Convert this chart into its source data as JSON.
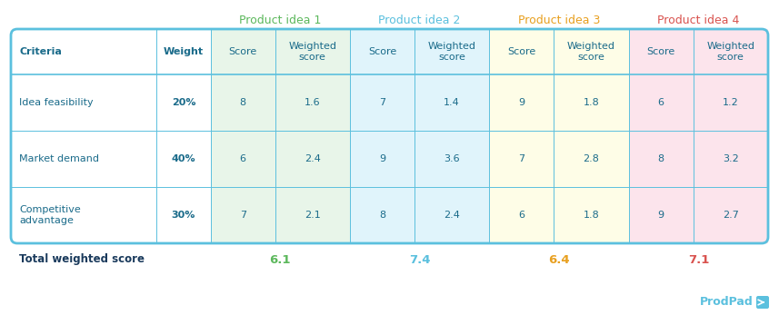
{
  "title_above": [
    "Product idea 1",
    "Product idea 2",
    "Product idea 3",
    "Product idea 4"
  ],
  "title_colors": [
    "#5cb85c",
    "#5bc0de",
    "#e8a020",
    "#d9534f"
  ],
  "header_row": [
    "Criteria",
    "Weight",
    "Score",
    "Weighted\nscore",
    "Score",
    "Weighted\nscore",
    "Score",
    "Weighted\nscore",
    "Score",
    "Weighted\nscore"
  ],
  "rows": [
    [
      "Idea feasibility",
      "20%",
      "8",
      "1.6",
      "7",
      "1.4",
      "9",
      "1.8",
      "6",
      "1.2"
    ],
    [
      "Market demand",
      "40%",
      "6",
      "2.4",
      "9",
      "3.6",
      "7",
      "2.8",
      "8",
      "3.2"
    ],
    [
      "Competitive\nadvantage",
      "30%",
      "7",
      "2.1",
      "8",
      "2.4",
      "6",
      "1.8",
      "9",
      "2.7"
    ]
  ],
  "total_label": "Total weighted score",
  "total_vals": [
    "6.1",
    "7.4",
    "6.4",
    "7.1"
  ],
  "total_val_col_indices": [
    3,
    5,
    7,
    9
  ],
  "col_bg_colors": [
    "#ffffff",
    "#ffffff",
    "#e8f5e9",
    "#e8f5e9",
    "#e0f4fb",
    "#e0f4fb",
    "#fefde7",
    "#fefde7",
    "#fce4ec",
    "#fce4ec"
  ],
  "header_text_color": "#1a6b8a",
  "body_text_color": "#1a6b8a",
  "border_color": "#5bc0de",
  "background_color": "#ffffff",
  "prodpad_text": "ProdPad",
  "prodpad_color": "#5bc0de",
  "total_label_color": "#1a3a5c",
  "col_widths_rel": [
    140,
    52,
    62,
    72,
    62,
    72,
    62,
    72,
    62,
    72
  ]
}
